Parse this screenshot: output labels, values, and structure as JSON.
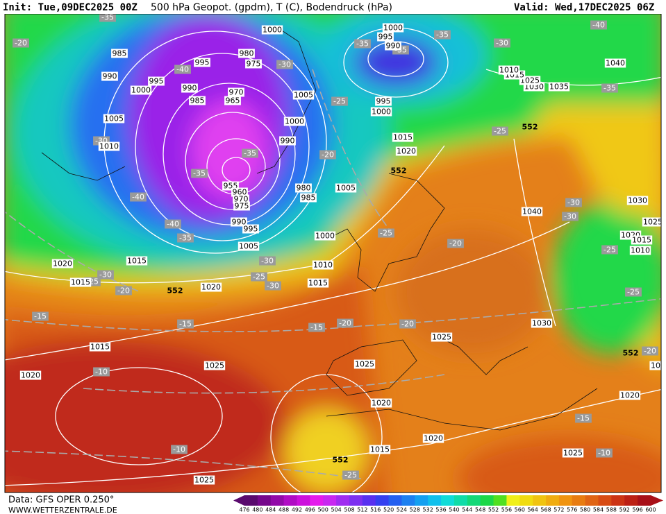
{
  "header": {
    "init": "Init: Tue,09DEC2025 00Z",
    "title": "500 hPa Geopot. (gpdm), T (C), Bodendruck (hPa)",
    "valid": "Valid: Wed,17DEC2025 06Z"
  },
  "footer": {
    "source": "Data: GFS OPER 0.250°",
    "site": "WWW.WETTERZENTRALE.DE"
  },
  "map": {
    "pressure_labels": [
      1000,
      1000,
      995,
      990,
      985,
      980,
      975,
      995,
      990,
      995,
      1000,
      990,
      970,
      965,
      985,
      1005,
      995,
      1000,
      1005,
      1000,
      990,
      1010,
      1015,
      1020,
      955,
      960,
      970,
      975,
      980,
      985,
      1005,
      990,
      995,
      1005,
      1000,
      1010,
      1015,
      1020,
      1015,
      1015,
      1020,
      1015,
      1025,
      1020,
      1025,
      1025,
      1020,
      1020,
      1015,
      1025,
      1025,
      1020,
      1030,
      1040,
      1030,
      1025,
      1020,
      1015,
      1010,
      1040,
      1035,
      1030,
      1025,
      1015,
      1010,
      10
    ],
    "temperature_labels": [
      -35,
      -20,
      -40,
      -30,
      -35,
      -35,
      -35,
      -30,
      -40,
      -35,
      -25,
      -30,
      -35,
      -20,
      -35,
      -40,
      -40,
      -35,
      -25,
      -25,
      -20,
      -30,
      -30,
      -25,
      -30,
      -25,
      -30,
      -30,
      -25,
      -20,
      -15,
      -15,
      -15,
      -20,
      -20,
      -25,
      -20,
      -10,
      -15,
      -10,
      -10,
      -25
    ],
    "geopotential_labels": [
      552,
      552,
      552,
      552,
      552
    ]
  },
  "colorbar": {
    "labels": [
      476,
      480,
      484,
      488,
      492,
      496,
      500,
      504,
      508,
      512,
      516,
      520,
      524,
      528,
      532,
      536,
      540,
      544,
      548,
      552,
      556,
      560,
      564,
      568,
      572,
      576,
      580,
      584,
      588,
      592,
      596,
      600
    ],
    "colors": [
      "#5a0a6e",
      "#76088c",
      "#920aa8",
      "#b00cc4",
      "#cc10dc",
      "#e41cec",
      "#c828f0",
      "#a02cf0",
      "#7c30f0",
      "#5830f0",
      "#3440f0",
      "#2460f0",
      "#1c80f0",
      "#14a0f0",
      "#10c0ec",
      "#10dcd8",
      "#10dca8",
      "#14d878",
      "#1cd848",
      "#50e020",
      "#f0f018",
      "#f0dc10",
      "#f0c410",
      "#f0ac10",
      "#f09410",
      "#e87c10",
      "#e06414",
      "#d84c14",
      "#cc3414",
      "#bc2014",
      "#a81018"
    ]
  }
}
